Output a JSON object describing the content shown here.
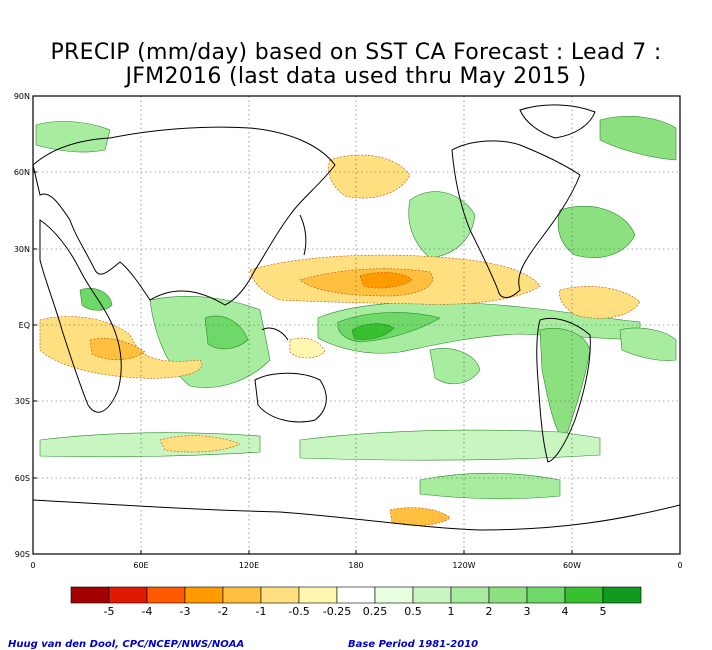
{
  "title": {
    "line1": "PRECIP (mm/day) based on SST CA Forecast : Lead 7 :",
    "line2": "JFM2016 (last data used thru May 2015 )"
  },
  "axes": {
    "lat_ticks": [
      "90N",
      "60N",
      "30N",
      "EQ",
      "30S",
      "60S",
      "90S"
    ],
    "lon_ticks": [
      "0",
      "60E",
      "120E",
      "180",
      "120W",
      "60W",
      "0"
    ]
  },
  "colorbar": {
    "colors": [
      "#a50000",
      "#e01a00",
      "#ff5a00",
      "#ff9a00",
      "#ffc040",
      "#ffe080",
      "#fff7b0",
      "#ffffff",
      "#e8ffe0",
      "#c8f5c0",
      "#a8eca0",
      "#8ce080",
      "#6ed868",
      "#38c030",
      "#109a20"
    ],
    "labels": [
      "-5",
      "-4",
      "-3",
      "-2",
      "-1",
      "-0.5",
      "-0.25",
      "0.25",
      "0.5",
      "1",
      "2",
      "3",
      "4",
      "5"
    ]
  },
  "credits": {
    "left": "Huug van den Dool, CPC/NCEP/NWS/NOAA",
    "right": "Base Period 1981-2010"
  }
}
